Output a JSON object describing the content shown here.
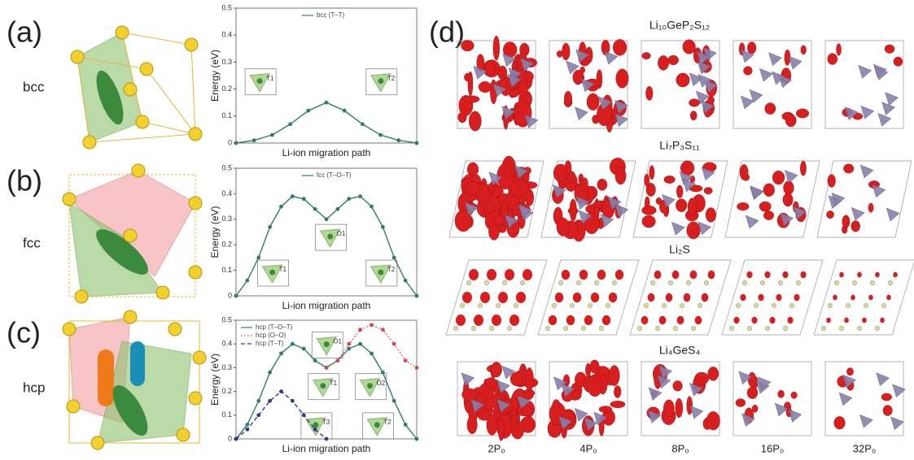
{
  "panels": [
    {
      "label": "(a)",
      "structure": "bcc"
    },
    {
      "label": "(b)",
      "structure": "fcc"
    },
    {
      "label": "(c)",
      "structure": "hcp"
    }
  ],
  "chart_data": [
    {
      "type": "line",
      "xlabel": "Li-ion migration path",
      "ylabel": "Energy (eV)",
      "xlim": [
        0,
        1
      ],
      "ylim": [
        0,
        0.5
      ],
      "yticks": [
        0,
        0.1,
        0.2,
        0.3,
        0.4,
        0.5
      ],
      "legend": "upper center",
      "insets": [
        "T1",
        "T2"
      ],
      "series": [
        {
          "name": "bcc (T–T)",
          "color": "#2e7d6b",
          "line_style": "solid",
          "x": [
            0,
            0.1,
            0.2,
            0.3,
            0.4,
            0.5,
            0.6,
            0.7,
            0.8,
            0.9,
            1
          ],
          "values": [
            0,
            0.01,
            0.03,
            0.07,
            0.12,
            0.15,
            0.12,
            0.07,
            0.03,
            0.01,
            0
          ]
        }
      ]
    },
    {
      "type": "line",
      "xlabel": "Li-ion migration path",
      "ylabel": "Energy (eV)",
      "xlim": [
        0,
        1
      ],
      "ylim": [
        0,
        0.5
      ],
      "yticks": [
        0,
        0.1,
        0.2,
        0.3,
        0.4,
        0.5
      ],
      "legend": "upper center",
      "insets": [
        "T1",
        "O1",
        "T2"
      ],
      "series": [
        {
          "name": "fcc (T–O–T)",
          "color": "#2e7d6b",
          "line_style": "solid",
          "x": [
            0,
            0.0625,
            0.125,
            0.1875,
            0.25,
            0.3125,
            0.375,
            0.4375,
            0.5,
            0.5625,
            0.625,
            0.6875,
            0.75,
            0.8125,
            0.875,
            0.9375,
            1
          ],
          "values": [
            0,
            0.06,
            0.15,
            0.27,
            0.35,
            0.39,
            0.38,
            0.34,
            0.3,
            0.34,
            0.38,
            0.39,
            0.35,
            0.27,
            0.15,
            0.06,
            0
          ]
        }
      ]
    },
    {
      "type": "line",
      "xlabel": "Li-ion migration path",
      "ylabel": "Energy (eV)",
      "xlim": [
        0,
        1
      ],
      "ylim": [
        0,
        0.5
      ],
      "yticks": [
        0,
        0.1,
        0.2,
        0.3,
        0.4,
        0.5
      ],
      "legend": "upper left",
      "insets": [
        "O1",
        "T1",
        "T3",
        "O2",
        "T2"
      ],
      "series": [
        {
          "name": "hcp (T–O–T)",
          "color": "#2e7d6b",
          "line_style": "solid",
          "x": [
            0,
            0.0625,
            0.125,
            0.1875,
            0.25,
            0.3125,
            0.375,
            0.4375,
            0.5,
            0.5625,
            0.625,
            0.6875,
            0.75,
            0.8125,
            0.875,
            0.9375,
            1
          ],
          "values": [
            0,
            0.06,
            0.16,
            0.28,
            0.36,
            0.4,
            0.38,
            0.33,
            0.3,
            0.33,
            0.38,
            0.4,
            0.36,
            0.28,
            0.16,
            0.06,
            0
          ]
        },
        {
          "name": "hcp (O–O)",
          "color": "#d9474b",
          "line_style": "dotted",
          "x": [
            0.5,
            0.5625,
            0.625,
            0.6875,
            0.75,
            0.8125,
            0.875,
            0.9375,
            1
          ],
          "values": [
            0.3,
            0.33,
            0.4,
            0.46,
            0.48,
            0.46,
            0.4,
            0.33,
            0.3
          ]
        },
        {
          "name": "hcp (T–T)",
          "color": "#2f3b82",
          "line_style": "dashed",
          "x": [
            0,
            0.0625,
            0.125,
            0.1875,
            0.25,
            0.3125,
            0.375,
            0.4375,
            0.5
          ],
          "values": [
            0,
            0.04,
            0.1,
            0.16,
            0.2,
            0.16,
            0.1,
            0.04,
            0
          ]
        }
      ]
    }
  ],
  "panel_d": {
    "label": "(d)",
    "rows": [
      "Li₁₀GeP₂S₁₂",
      "Li₇P₃S₁₁",
      "Li₂S",
      "Li₄GeS₄"
    ],
    "columns": [
      "2P₀",
      "4P₀",
      "8P₀",
      "16P₀",
      "32P₀"
    ]
  }
}
